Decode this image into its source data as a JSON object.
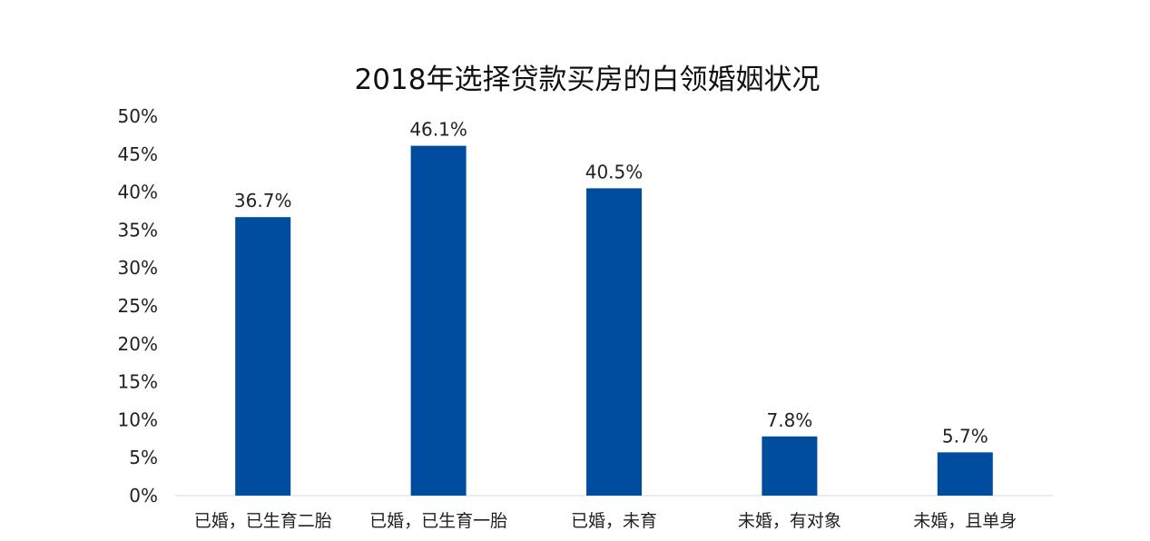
{
  "chart_data": {
    "type": "bar",
    "title": "2018年选择贷款买房的白领婚姻状况",
    "xlabel": "",
    "ylabel": "",
    "categories": [
      "已婚，已生育二胎",
      "已婚，已生育一胎",
      "已婚，未育",
      "未婚，有对象",
      "未婚，且单身"
    ],
    "values": [
      36.7,
      46.1,
      40.5,
      7.8,
      5.7
    ],
    "data_labels": [
      "36.7%",
      "46.1%",
      "40.5%",
      "7.8%",
      "5.7%"
    ],
    "ylim": [
      0,
      50
    ],
    "yticks": [
      "0%",
      "5%",
      "10%",
      "15%",
      "20%",
      "25%",
      "30%",
      "35%",
      "40%",
      "45%",
      "50%"
    ],
    "grid": false,
    "legend": "none",
    "bar_color": "#004d9f"
  }
}
